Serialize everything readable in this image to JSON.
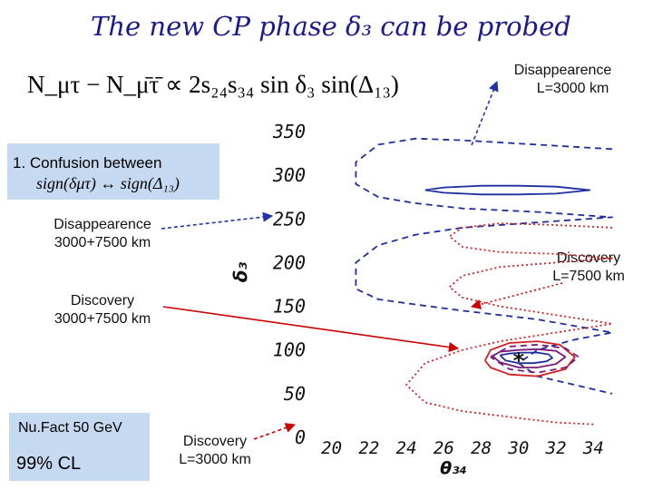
{
  "slide": {
    "title": "The new CP phase δ₃ can be probed",
    "formula": "N_μτ − N_μ̄τ̄ ∝ 2s₂₄s₃₄ sin δ₃ sin(Δ₁₃)",
    "confusion_label": "1. Confusion between",
    "confusion_formula": "sign(δμτ) ↔ sign(Δ₁₃)",
    "setup_label": "Nu.Fact 50 GeV",
    "cl_label": "99% CL"
  },
  "annotations": {
    "disapp_3000_line1": "Disappearence",
    "disapp_3000_line2": "L=3000 km",
    "disapp_combined_line1": "Disappearence",
    "disapp_combined_line2": "3000+7500 km",
    "disc_combined_line1": "Discovery",
    "disc_combined_line2": "3000+7500 km",
    "disc_7500_line1": "Discovery",
    "disc_7500_line2": "L=7500 km",
    "disc_3000_line1": "Discovery",
    "disc_3000_line2": "L=3000 km"
  },
  "colors": {
    "title": "#1a1a8c",
    "box_fill": "#c5d9f1",
    "disappearance": "#1f2fa0",
    "discovery": "#d42020",
    "combined": "#7a1a7a",
    "arrow_blue": "#2233aa",
    "arrow_red": "#cc0000"
  },
  "chart_data": {
    "type": "line",
    "xlabel": "θ₃₄",
    "ylabel": "δ₃",
    "xlim": [
      19,
      35
    ],
    "ylim": [
      0,
      360
    ],
    "xticks": [
      20,
      22,
      24,
      26,
      28,
      30,
      32,
      34
    ],
    "yticks": [
      0,
      50,
      100,
      150,
      200,
      250,
      300,
      350
    ],
    "grid": false,
    "true_point": {
      "x": 30,
      "y": 90,
      "marker": "*"
    },
    "series": [
      {
        "style": "dashed",
        "color": "#1f2fa0",
        "x": [
          35,
          31,
          27,
          24.5,
          22.5,
          21.3,
          21.3,
          22.5,
          24.5,
          27,
          31,
          35,
          31,
          27,
          24.5,
          22.5,
          21.3,
          21.3,
          22.5,
          24.5,
          27,
          31,
          35,
          33,
          31,
          30,
          31,
          33,
          35
        ],
        "y": [
          330,
          335,
          340,
          342,
          335,
          315,
          290,
          275,
          268,
          262,
          258,
          252,
          246,
          240,
          232,
          220,
          200,
          170,
          158,
          152,
          145,
          135,
          120,
          112,
          100,
          85,
          70,
          60,
          50
        ]
      },
      {
        "style": "solid",
        "color": "#1f2fa0",
        "x": [
          25,
          26,
          28,
          30,
          32,
          33.8,
          32,
          30,
          28,
          26,
          25
        ],
        "y": [
          283,
          286,
          288,
          288,
          287,
          283,
          279,
          278,
          278,
          280,
          283
        ]
      },
      {
        "style": "dotted",
        "color": "#d42020",
        "x": [
          35,
          32,
          29,
          27,
          26.3,
          27,
          29,
          32,
          35,
          32,
          29,
          27,
          26.3,
          27,
          29,
          32,
          35,
          32,
          29,
          27,
          25,
          24,
          25,
          27,
          30,
          32,
          34
        ],
        "y": [
          240,
          243,
          245,
          240,
          230,
          218,
          212,
          210,
          205,
          200,
          195,
          185,
          172,
          160,
          150,
          140,
          130,
          120,
          110,
          100,
          85,
          60,
          40,
          30,
          22,
          17,
          15
        ]
      },
      {
        "style": "solid",
        "color": "#d42020",
        "x": [
          28.2,
          28.5,
          29.5,
          31,
          32.2,
          33,
          32.5,
          31,
          29.5,
          28.5,
          28.2
        ],
        "y": [
          88,
          100,
          108,
          110,
          106,
          92,
          78,
          70,
          72,
          80,
          88
        ]
      },
      {
        "style": "solid",
        "color": "#7a1a7a",
        "x": [
          28.6,
          29,
          30,
          31,
          32,
          32.5,
          32,
          31,
          30,
          29,
          28.6
        ],
        "y": [
          93,
          98,
          100,
          101,
          99,
          92,
          84,
          80,
          80,
          86,
          93
        ]
      },
      {
        "style": "solid",
        "color": "#1f2fa0",
        "x": [
          29,
          29.5,
          30.2,
          31,
          31.6,
          31.8,
          31.5,
          30.8,
          30,
          29.3,
          29
        ],
        "y": [
          94,
          96,
          97,
          97,
          95,
          91,
          87,
          85,
          85,
          88,
          94
        ]
      },
      {
        "style": "dashed",
        "color": "#7a1a7a",
        "x": [
          28.5,
          29.5,
          31,
          32.5,
          33.2,
          32.5,
          31,
          29.5,
          28.5
        ],
        "y": [
          92,
          104,
          106,
          102,
          92,
          80,
          74,
          78,
          92
        ]
      }
    ]
  }
}
